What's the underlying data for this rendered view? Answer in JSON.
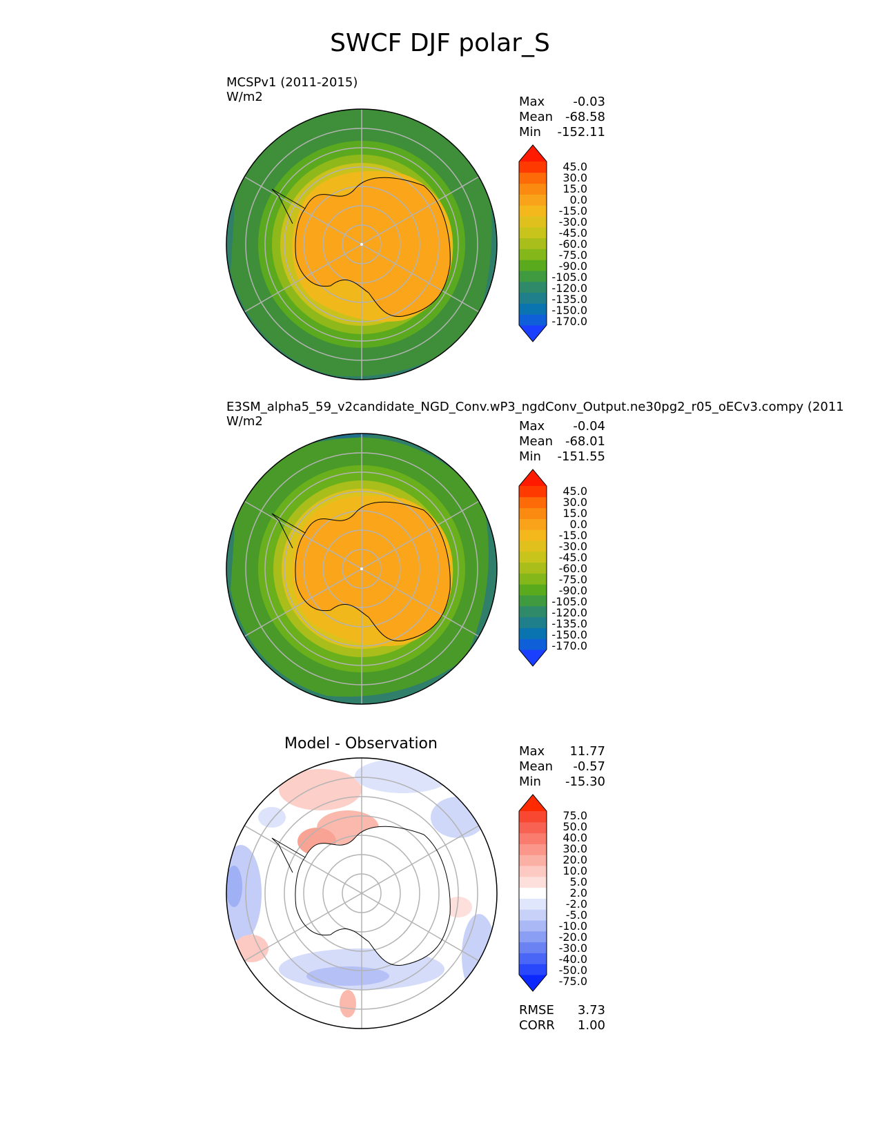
{
  "title": "SWCF DJF polar_S",
  "panels": [
    {
      "id": "test",
      "title_line1": "MCSPv1 (2011-2015)",
      "title_line2": "W/m2",
      "stats": {
        "max_label": "Max",
        "max": "-0.03",
        "mean_label": "Mean",
        "mean": "-68.58",
        "min_label": "Min",
        "min": "-152.11"
      },
      "colorbar": {
        "labels": [
          "45.0",
          "30.0",
          "15.0",
          "0.0",
          "-15.0",
          "-30.0",
          "-45.0",
          "-60.0",
          "-75.0",
          "-90.0",
          "-105.0",
          "-120.0",
          "-135.0",
          "-150.0",
          "-170.0"
        ],
        "colors": [
          "#1a3fff",
          "#0f5fd8",
          "#0a74b0",
          "#1f7f8a",
          "#2f8a6a",
          "#3f9a40",
          "#5aaa1e",
          "#84b81a",
          "#a9be1a",
          "#c8c41c",
          "#e0c01c",
          "#f5b81c",
          "#f9a31a",
          "#fb8a10",
          "#fd6a08",
          "#ff3a00",
          "#ff1a00"
        ]
      }
    },
    {
      "id": "reference",
      "title_line1": "E3SM_alpha5_59_v2candidate_NGD_Conv.wP3_ngdConv_Output.ne30pg2_r05_oECv3.compy (2011",
      "title_line2": "W/m2",
      "stats": {
        "max_label": "Max",
        "max": "-0.04",
        "mean_label": "Mean",
        "mean": "-68.01",
        "min_label": "Min",
        "min": "-151.55"
      },
      "colorbar": {
        "labels": [
          "45.0",
          "30.0",
          "15.0",
          "0.0",
          "-15.0",
          "-30.0",
          "-45.0",
          "-60.0",
          "-75.0",
          "-90.0",
          "-105.0",
          "-120.0",
          "-135.0",
          "-150.0",
          "-170.0"
        ],
        "colors": [
          "#1a3fff",
          "#0f5fd8",
          "#0a74b0",
          "#1f7f8a",
          "#2f8a6a",
          "#3f9a40",
          "#5aaa1e",
          "#84b81a",
          "#a9be1a",
          "#c8c41c",
          "#e0c01c",
          "#f5b81c",
          "#f9a31a",
          "#fb8a10",
          "#fd6a08",
          "#ff3a00",
          "#ff1a00"
        ]
      }
    },
    {
      "id": "diff",
      "title_center": "Model - Observation",
      "stats": {
        "max_label": "Max",
        "max": "11.77",
        "mean_label": "Mean",
        "mean": "-0.57",
        "min_label": "Min",
        "min": "-15.30"
      },
      "metrics": {
        "rmse_label": "RMSE",
        "rmse": "3.73",
        "corr_label": "CORR",
        "corr": "1.00"
      },
      "colorbar": {
        "labels": [
          "75.0",
          "50.0",
          "40.0",
          "30.0",
          "20.0",
          "10.0",
          "5.0",
          "2.0",
          "-2.0",
          "-5.0",
          "-10.0",
          "-20.0",
          "-30.0",
          "-40.0",
          "-50.0",
          "-75.0"
        ],
        "colors": [
          "#0a28ff",
          "#2a48fb",
          "#4a66f6",
          "#6a82f2",
          "#8a9ef3",
          "#aab8f6",
          "#c8d2f9",
          "#e0e6fb",
          "#ffffff",
          "#fde0dc",
          "#fccac2",
          "#fbb0a6",
          "#fa968a",
          "#f97c6e",
          "#f86252",
          "#f84832",
          "#ff2a00"
        ]
      }
    }
  ]
}
